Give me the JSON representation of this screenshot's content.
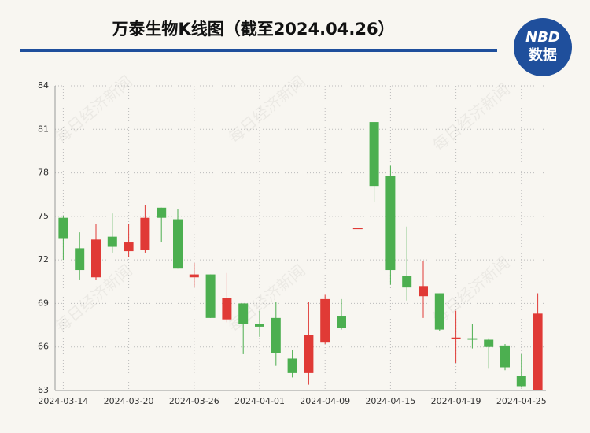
{
  "chart_data": {
    "type": "candlestick",
    "title": "万泰生物K线图（截至2024.04.26）",
    "logo": {
      "top": "NBD",
      "bottom": "数据"
    },
    "watermark": "每日经济新闻",
    "categories": [
      "2024-03-14",
      null,
      null,
      null,
      "2024-03-20",
      null,
      null,
      null,
      "2024-03-26",
      null,
      null,
      null,
      "2024-04-01",
      null,
      null,
      null,
      "2024-04-09",
      null,
      null,
      null,
      "2024-04-15",
      null,
      null,
      null,
      "2024-04-19",
      null,
      null,
      null,
      "2024-04-25",
      null
    ],
    "series": {
      "open": [
        74.9,
        72.8,
        70.8,
        73.6,
        72.6,
        72.7,
        75.6,
        74.8,
        70.8,
        71.0,
        67.9,
        69.0,
        67.6,
        68.0,
        65.2,
        64.2,
        66.3,
        68.1,
        74.15,
        81.5,
        77.8,
        70.9,
        69.5,
        69.7,
        66.6,
        66.6,
        66.5,
        66.1,
        64.0,
        63.0
      ],
      "high": [
        75.0,
        73.9,
        74.5,
        75.2,
        74.5,
        75.8,
        75.6,
        75.5,
        71.8,
        71.0,
        71.1,
        69.0,
        68.5,
        69.1,
        65.8,
        69.1,
        69.6,
        69.3,
        74.2,
        81.5,
        78.5,
        74.3,
        71.9,
        69.7,
        68.5,
        67.6,
        66.6,
        66.2,
        65.5,
        69.7
      ],
      "low": [
        72.0,
        70.6,
        70.6,
        72.5,
        72.2,
        72.5,
        73.2,
        71.4,
        70.1,
        68.0,
        67.7,
        65.5,
        66.7,
        64.7,
        63.9,
        63.4,
        66.2,
        67.2,
        74.15,
        76.0,
        70.3,
        69.2,
        68.0,
        67.1,
        64.9,
        65.9,
        64.5,
        64.4,
        63.2,
        63.0
      ],
      "close": [
        73.5,
        71.3,
        73.4,
        72.9,
        73.2,
        74.9,
        74.9,
        71.4,
        71.0,
        68.0,
        69.4,
        67.6,
        67.4,
        65.6,
        64.2,
        66.8,
        69.3,
        67.3,
        74.2,
        77.1,
        71.3,
        70.1,
        70.2,
        67.2,
        66.65,
        66.5,
        66.0,
        64.6,
        63.3,
        68.3
      ]
    },
    "up_color": "#e03a36",
    "down_color": "#4caf50",
    "ylim": [
      63,
      84
    ],
    "yticks": [
      63,
      66,
      69,
      72,
      75,
      78,
      81,
      84
    ],
    "grid": true
  }
}
